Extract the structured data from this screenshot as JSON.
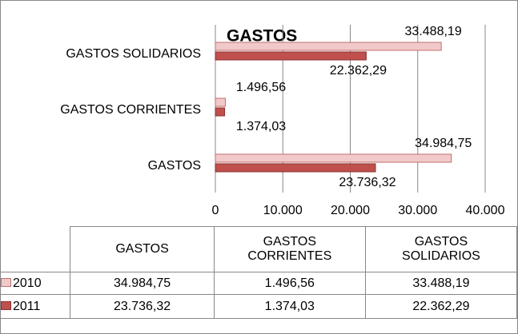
{
  "chart_data": {
    "type": "bar",
    "orientation": "horizontal",
    "title": "GASTOS",
    "categories": [
      "GASTOS",
      "GASTOS CORRIENTES",
      "GASTOS SOLIDARIOS"
    ],
    "series": [
      {
        "name": "2010",
        "color": "#f2c9c9",
        "values": [
          34984.75,
          1496.56,
          33488.19
        ],
        "value_labels": [
          "34.984,75",
          "1.496,56",
          "33.488,19"
        ]
      },
      {
        "name": "2011",
        "color": "#c0504d",
        "values": [
          23736.32,
          1374.03,
          22362.29
        ],
        "value_labels": [
          "23.736,32",
          "1.374,03",
          "22.362,29"
        ]
      }
    ],
    "xlim": [
      0,
      40000
    ],
    "xticks": [
      0,
      {
        "value": 10000,
        "label": "10.000"
      },
      {
        "value": 20000,
        "label": "20.000"
      },
      {
        "value": 30000,
        "label": "30.000"
      },
      {
        "value": 40000,
        "label": "40.000"
      }
    ],
    "grid": true,
    "data_table": true
  }
}
